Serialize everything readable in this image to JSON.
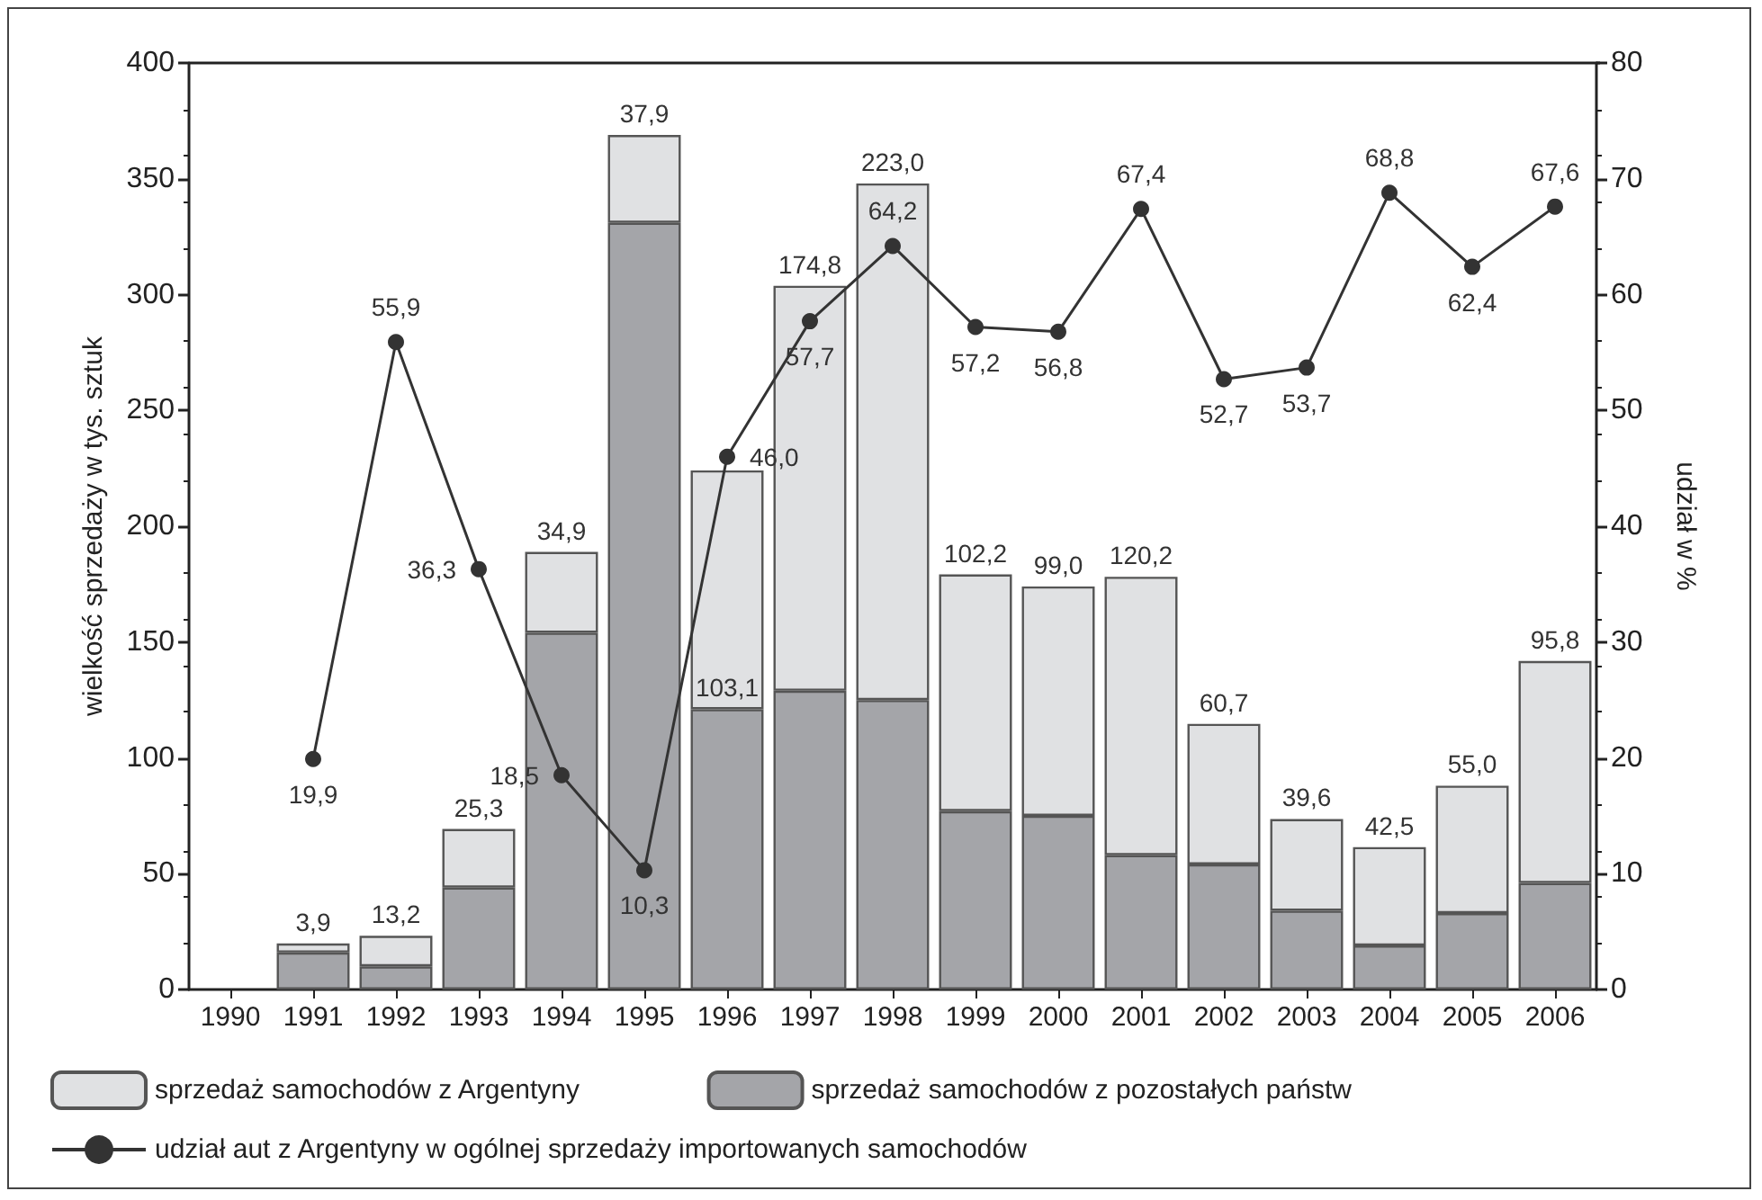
{
  "chart_data": {
    "type": "bar",
    "stacked": true,
    "categories": [
      "1990",
      "1991",
      "1992",
      "1993",
      "1994",
      "1995",
      "1996",
      "1997",
      "1998",
      "1999",
      "2000",
      "2001",
      "2002",
      "2003",
      "2004",
      "2005",
      "2006"
    ],
    "series": [
      {
        "name": "sprzedaż samochodów z pozostałych państw",
        "color": "#a4a5a9",
        "values": [
          null,
          16,
          10,
          44,
          154,
          331,
          121,
          129,
          125,
          77,
          75,
          58,
          54,
          34,
          19,
          33,
          46
        ]
      },
      {
        "name": "sprzedaż samochodów z Argentyny",
        "color": "#e0e1e3",
        "values": [
          null,
          3.9,
          13.2,
          25.3,
          34.9,
          37.9,
          103.1,
          174.8,
          223.0,
          102.2,
          99.0,
          120.2,
          60.7,
          39.6,
          42.5,
          55.0,
          95.8
        ],
        "value_labels": [
          null,
          "3,9",
          "13,2",
          "25,3",
          "34,9",
          "37,9",
          "103,1",
          "174,8",
          "223,0",
          "102,2",
          "99,0",
          "120,2",
          "60,7",
          "39,6",
          "42,5",
          "55,0",
          "95,8"
        ]
      },
      {
        "name": "udział aut z Argentyny w ogólnej sprzedaży importowanych samochodów",
        "type": "line",
        "axis": "y2",
        "color": "#333333",
        "marker": "circle",
        "values": [
          null,
          19.9,
          55.9,
          36.3,
          18.5,
          10.3,
          46.0,
          57.7,
          64.2,
          57.2,
          56.8,
          67.4,
          52.7,
          53.7,
          68.8,
          62.4,
          67.6
        ],
        "value_labels": [
          null,
          "19,9",
          "55,9",
          "36,3",
          "18,5",
          "10,3",
          "46,0",
          "57,7",
          "64,2",
          "57,2",
          "56,8",
          "67,4",
          "52,7",
          "53,7",
          "68,8",
          "62,4",
          "67,6"
        ]
      }
    ],
    "ylabel": "wielkość sprzedaży w tys. sztuk",
    "y2label": "udział w %",
    "ylim": [
      0,
      400
    ],
    "yticks": [
      0,
      50,
      100,
      150,
      200,
      250,
      300,
      350,
      400
    ],
    "y2lim": [
      0,
      80
    ],
    "y2ticks": [
      0,
      10,
      20,
      30,
      40,
      50,
      60,
      70,
      80
    ],
    "grid": false,
    "legend": "bottom",
    "line_style": "solid"
  }
}
